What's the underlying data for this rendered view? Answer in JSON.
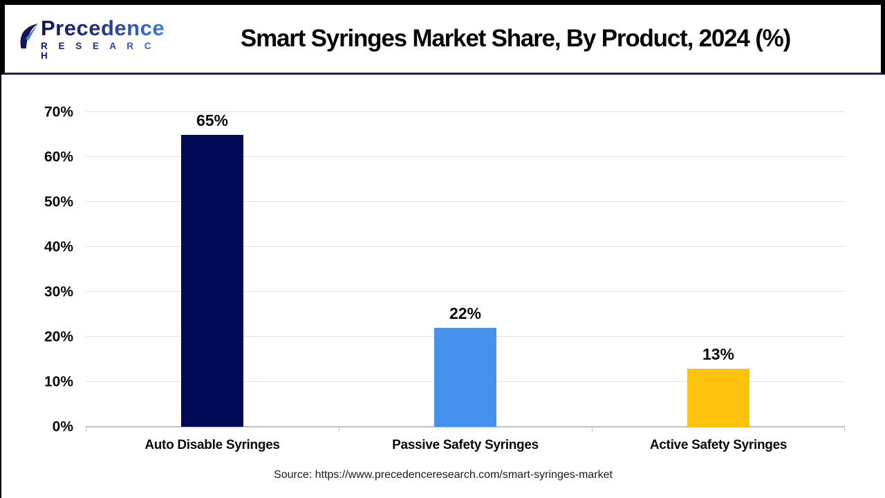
{
  "header": {
    "logo": {
      "name": "Precedence",
      "subtitle": "R E S E A R C H"
    },
    "title": "Smart Syringes Market Share, By Product, 2024 (%)"
  },
  "chart_data": {
    "type": "bar",
    "title": "Smart Syringes Market Share, By Product, 2024 (%)",
    "categories": [
      "Auto Disable Syringes",
      "Passive Safety Syringes",
      "Active Safety Syringes"
    ],
    "values": [
      65,
      22,
      13
    ],
    "value_labels": [
      "65%",
      "22%",
      "13%"
    ],
    "bar_colors": [
      "#000A54",
      "#4591EC",
      "#FFC20E"
    ],
    "xlabel": "",
    "ylabel": "",
    "ylim": [
      0,
      70
    ],
    "yticks": [
      0,
      10,
      20,
      30,
      40,
      50,
      60,
      70
    ],
    "ytick_labels": [
      "0%",
      "10%",
      "20%",
      "30%",
      "40%",
      "50%",
      "60%",
      "70%"
    ],
    "grid": true,
    "legend": "none"
  },
  "footer": {
    "source": "Source: https://www.precedenceresearch.com/smart-syringes-market"
  },
  "colors": {
    "bar_auto_disable": "#000A54",
    "bar_passive_safety": "#4591EC",
    "bar_active_safety": "#FFC20E",
    "header_separator": "#1E2157",
    "outer_border": "#000000",
    "gridline": "#E3E3E3",
    "axis_line": "#BFBFBF",
    "logo_navy": "#141457",
    "logo_blue": "#3D85E0",
    "title_text": "#050505"
  }
}
